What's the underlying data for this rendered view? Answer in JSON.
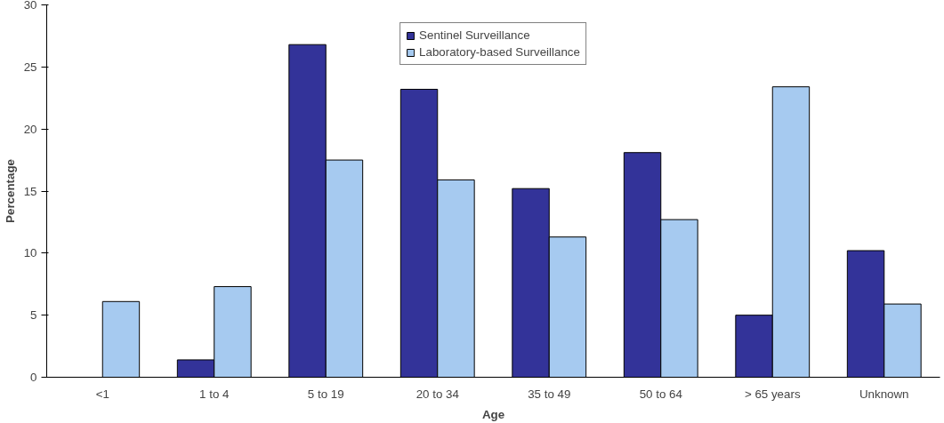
{
  "chart_data": {
    "type": "bar",
    "xlabel": "Age",
    "ylabel": "Percentage",
    "categories": [
      "<1",
      "1 to 4",
      "5 to 19",
      "20 to 34",
      "35 to 49",
      "50 to 64",
      "> 65 years",
      "Unknown"
    ],
    "series": [
      {
        "name": "Sentinel Surveillance",
        "color": "#333399",
        "values": [
          null,
          1.4,
          26.8,
          23.2,
          15.2,
          18.1,
          5.0,
          10.2
        ]
      },
      {
        "name": "Laboratory-based Surveillance",
        "color": "#a6caf0",
        "values": [
          6.1,
          7.3,
          17.5,
          15.9,
          11.3,
          12.7,
          23.4,
          5.9
        ]
      }
    ],
    "ylim": [
      0,
      30
    ],
    "yticks": [
      0,
      5,
      10,
      15,
      20,
      25,
      30
    ],
    "grid": false,
    "legend": "top"
  }
}
